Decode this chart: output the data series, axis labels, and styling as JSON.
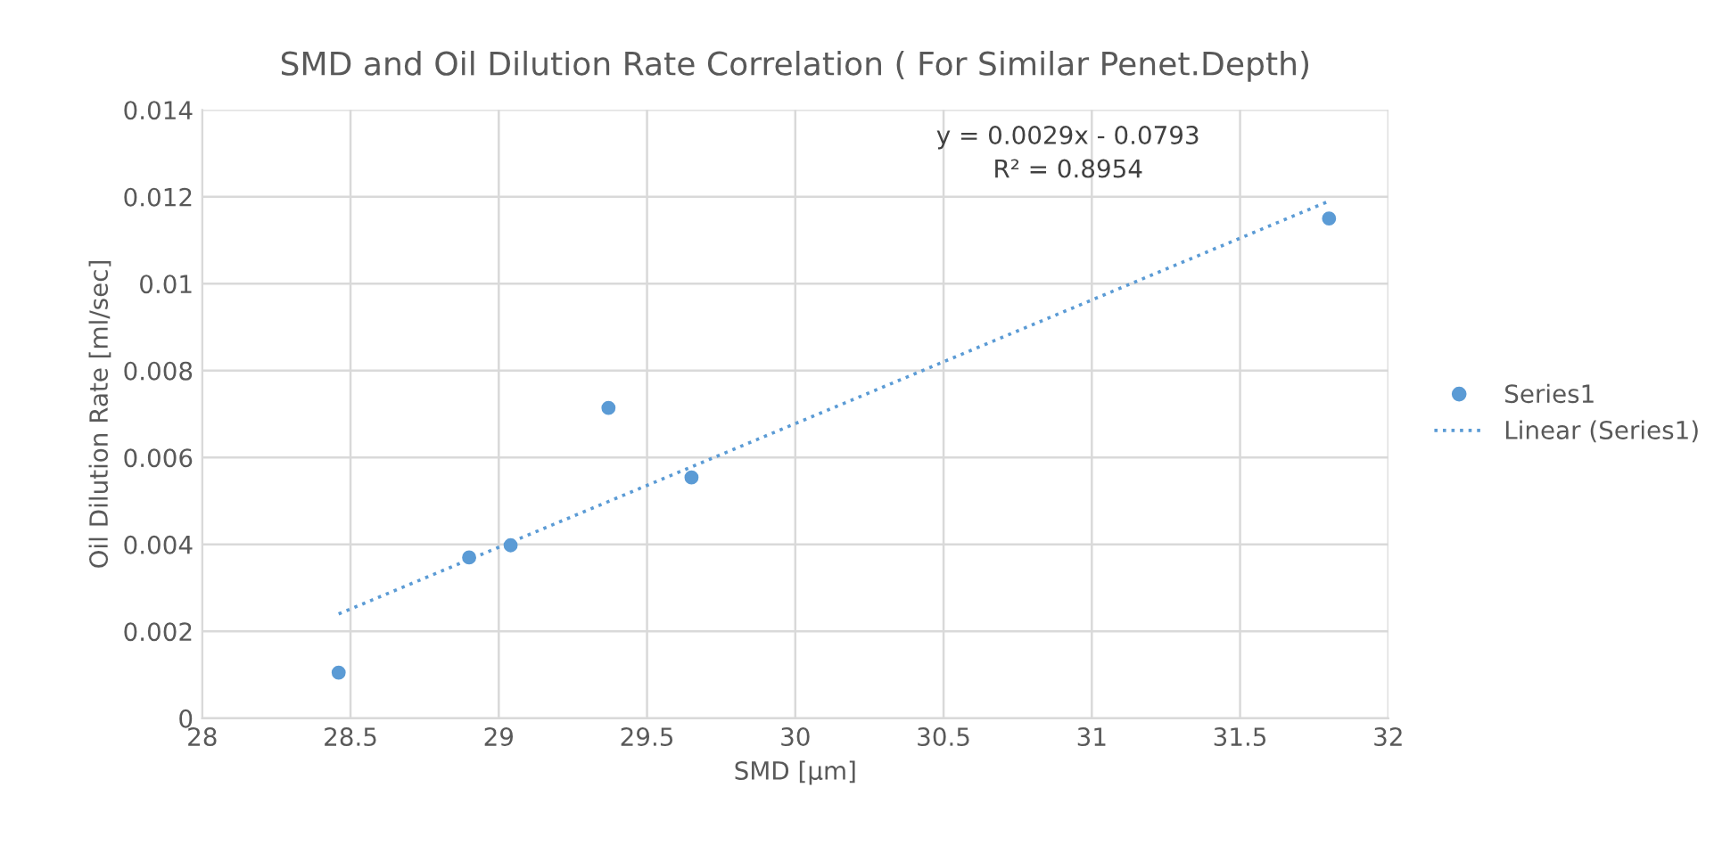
{
  "chart_data": {
    "type": "scatter",
    "title": "SMD and Oil Dilution Rate Correlation ( For Similar Penet.Depth)",
    "xlabel": "SMD [µm]",
    "ylabel": "Oil Dilution Rate [ml/sec]",
    "series": [
      {
        "name": "Series1",
        "color": "#5b9bd5",
        "marker": "circle",
        "x": [
          28.46,
          28.9,
          29.04,
          29.37,
          29.65,
          31.8
        ],
        "values": [
          0.00105,
          0.0037,
          0.00398,
          0.00714,
          0.00554,
          0.0115
        ]
      },
      {
        "name": "Linear (Series1)",
        "type": "line",
        "color": "#5b9bd5",
        "line_style": "dotted",
        "x": [
          28.46,
          31.8
        ],
        "values": [
          0.0024,
          0.0119
        ]
      }
    ],
    "annotations": [
      "y = 0.0029x - 0.0793",
      "R² = 0.8954"
    ],
    "xlim": [
      28,
      32
    ],
    "xticks": [
      28,
      28.5,
      29,
      29.5,
      30,
      30.5,
      31,
      31.5,
      32
    ],
    "ylim": [
      0,
      0.014
    ],
    "yticks": [
      0,
      0.002,
      0.004,
      0.006,
      0.008,
      0.01,
      0.012,
      0.014
    ],
    "grid": true,
    "legend": "right"
  }
}
